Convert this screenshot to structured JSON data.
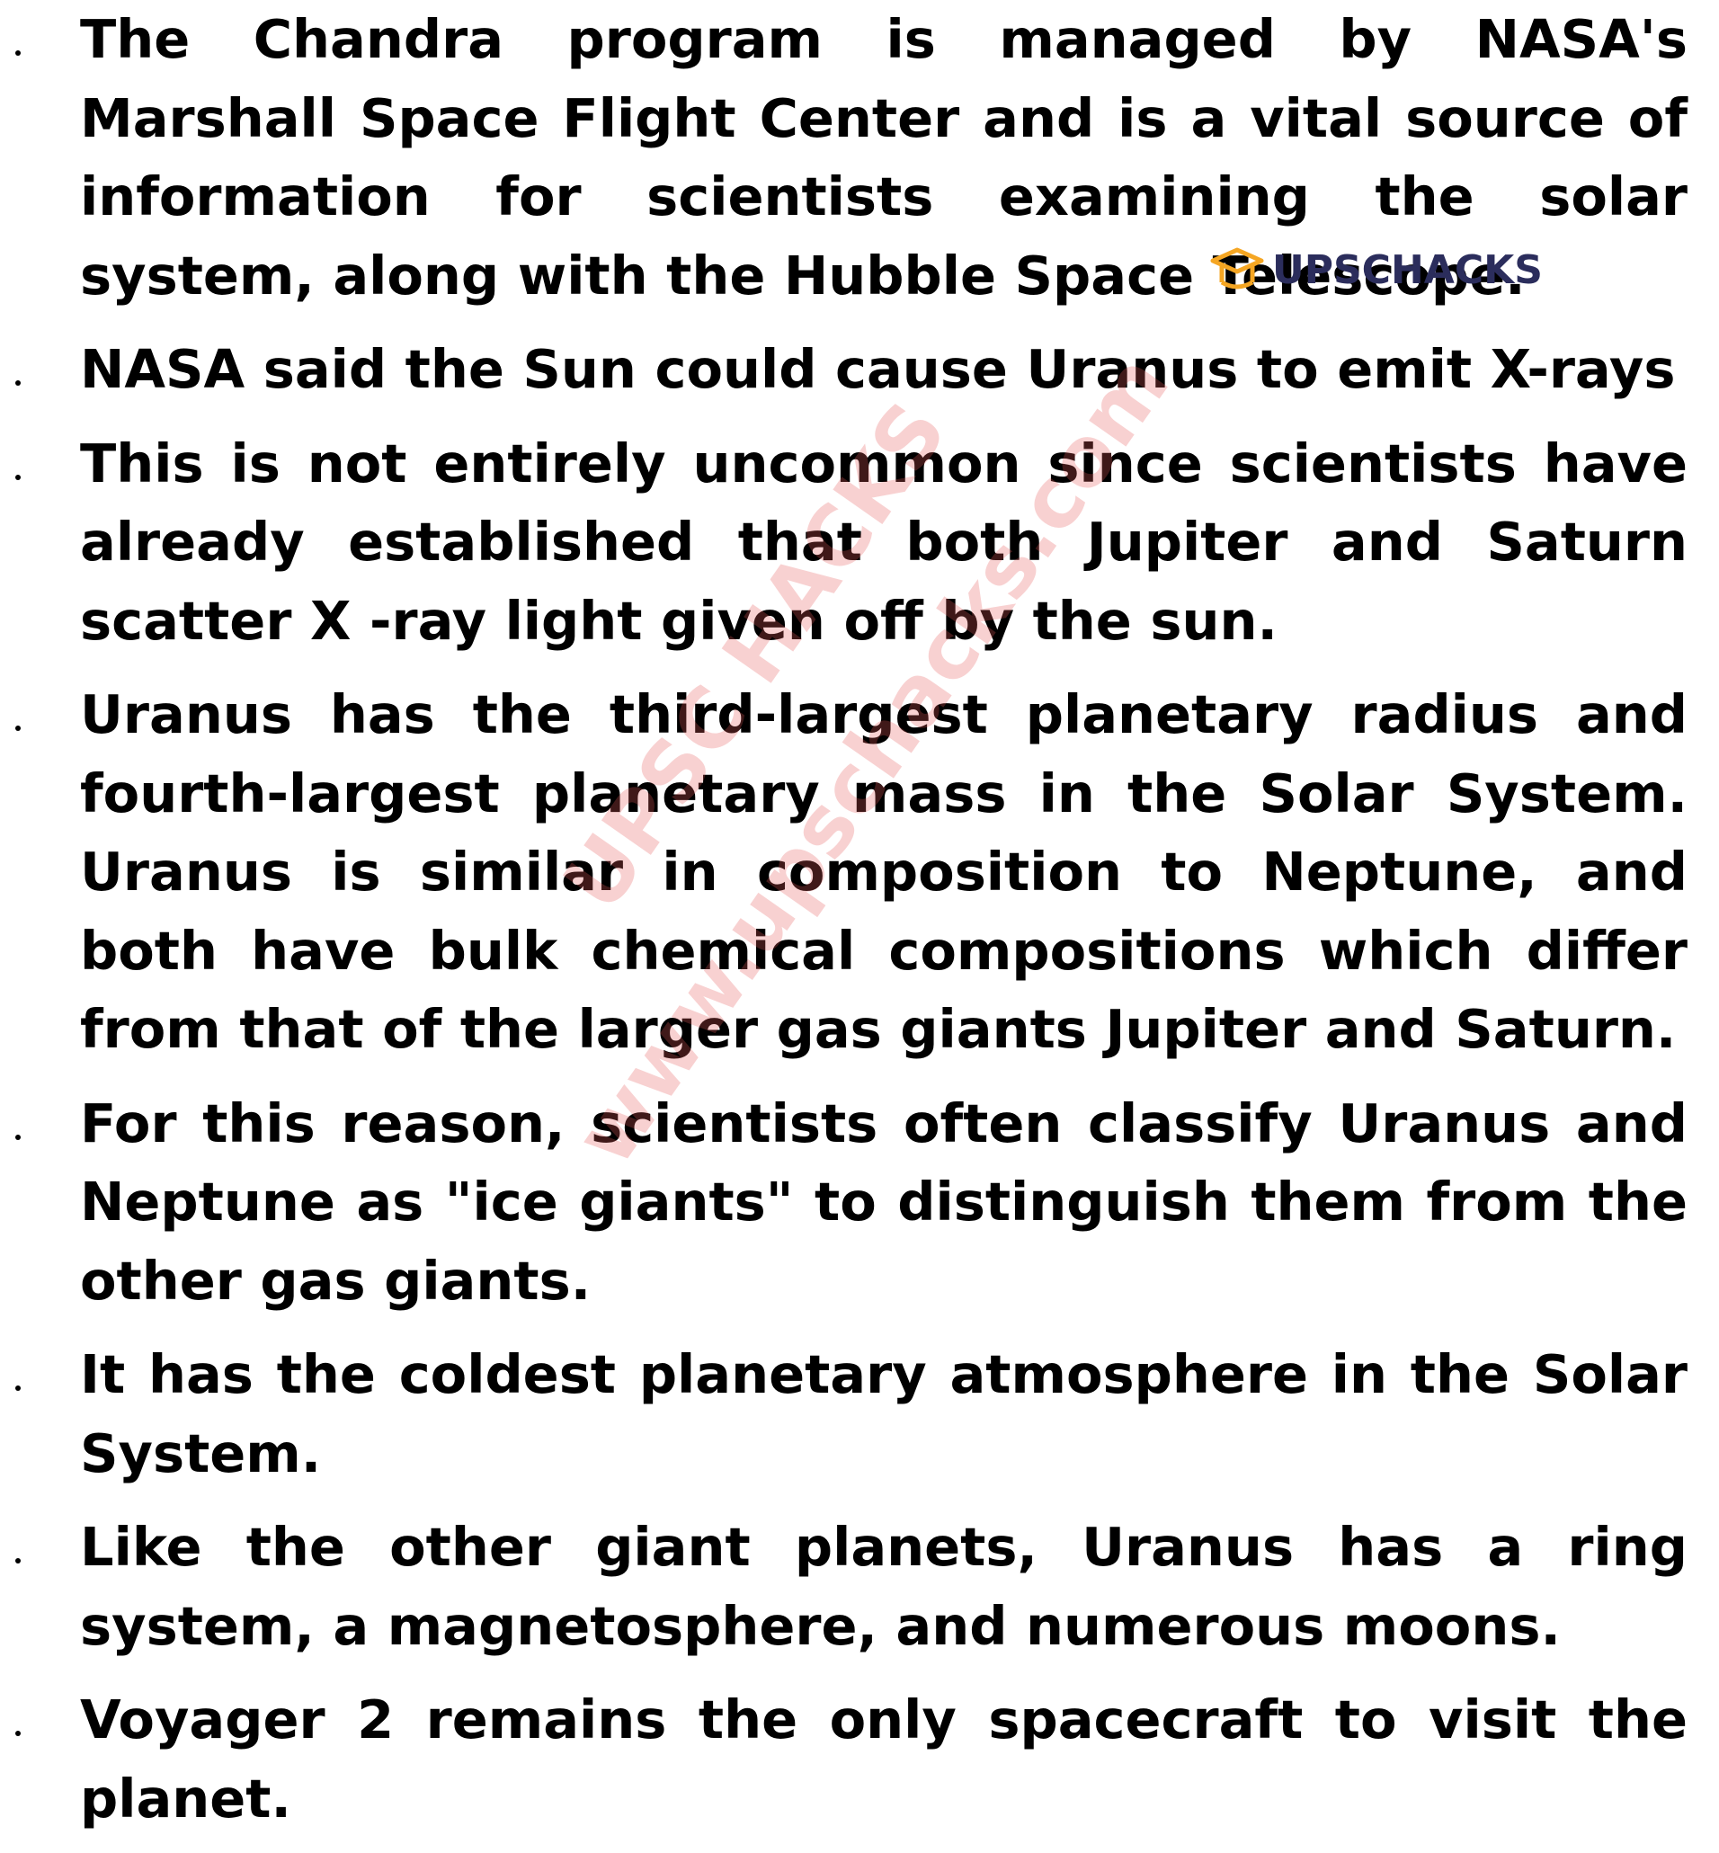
{
  "items": [
    "The Chandra program is managed by NASA's Marshall Space Flight Center and is a vital source of information for scientists examining the solar system, along with the Hubble Space Telescope.",
    "NASA said the Sun could cause Uranus to emit X-rays",
    "This is not entirely uncommon since scientists have already established that both Jupiter and Saturn scatter X -ray light given off by the sun.",
    "Uranus has the third-largest planetary radius and fourth-largest planetary mass in the Solar System. Uranus is similar in composition to Neptune, and both have bulk chemical compositions which differ from that of the larger gas giants Jupiter and Saturn.",
    "For this reason, scientists often classify Uranus and Neptune as \"ice giants\" to distinguish them from the other gas giants.",
    "It has the coldest planetary atmosphere in the Solar System.",
    "Like the other giant planets, Uranus has a ring system, a magnetosphere, and numerous moons.",
    "Voyager 2 remains the only spacecraft to visit the planet."
  ],
  "logo": "UPSCHACKS",
  "watermark": [
    "UPSC HACKS",
    "www.upschacks.com"
  ]
}
